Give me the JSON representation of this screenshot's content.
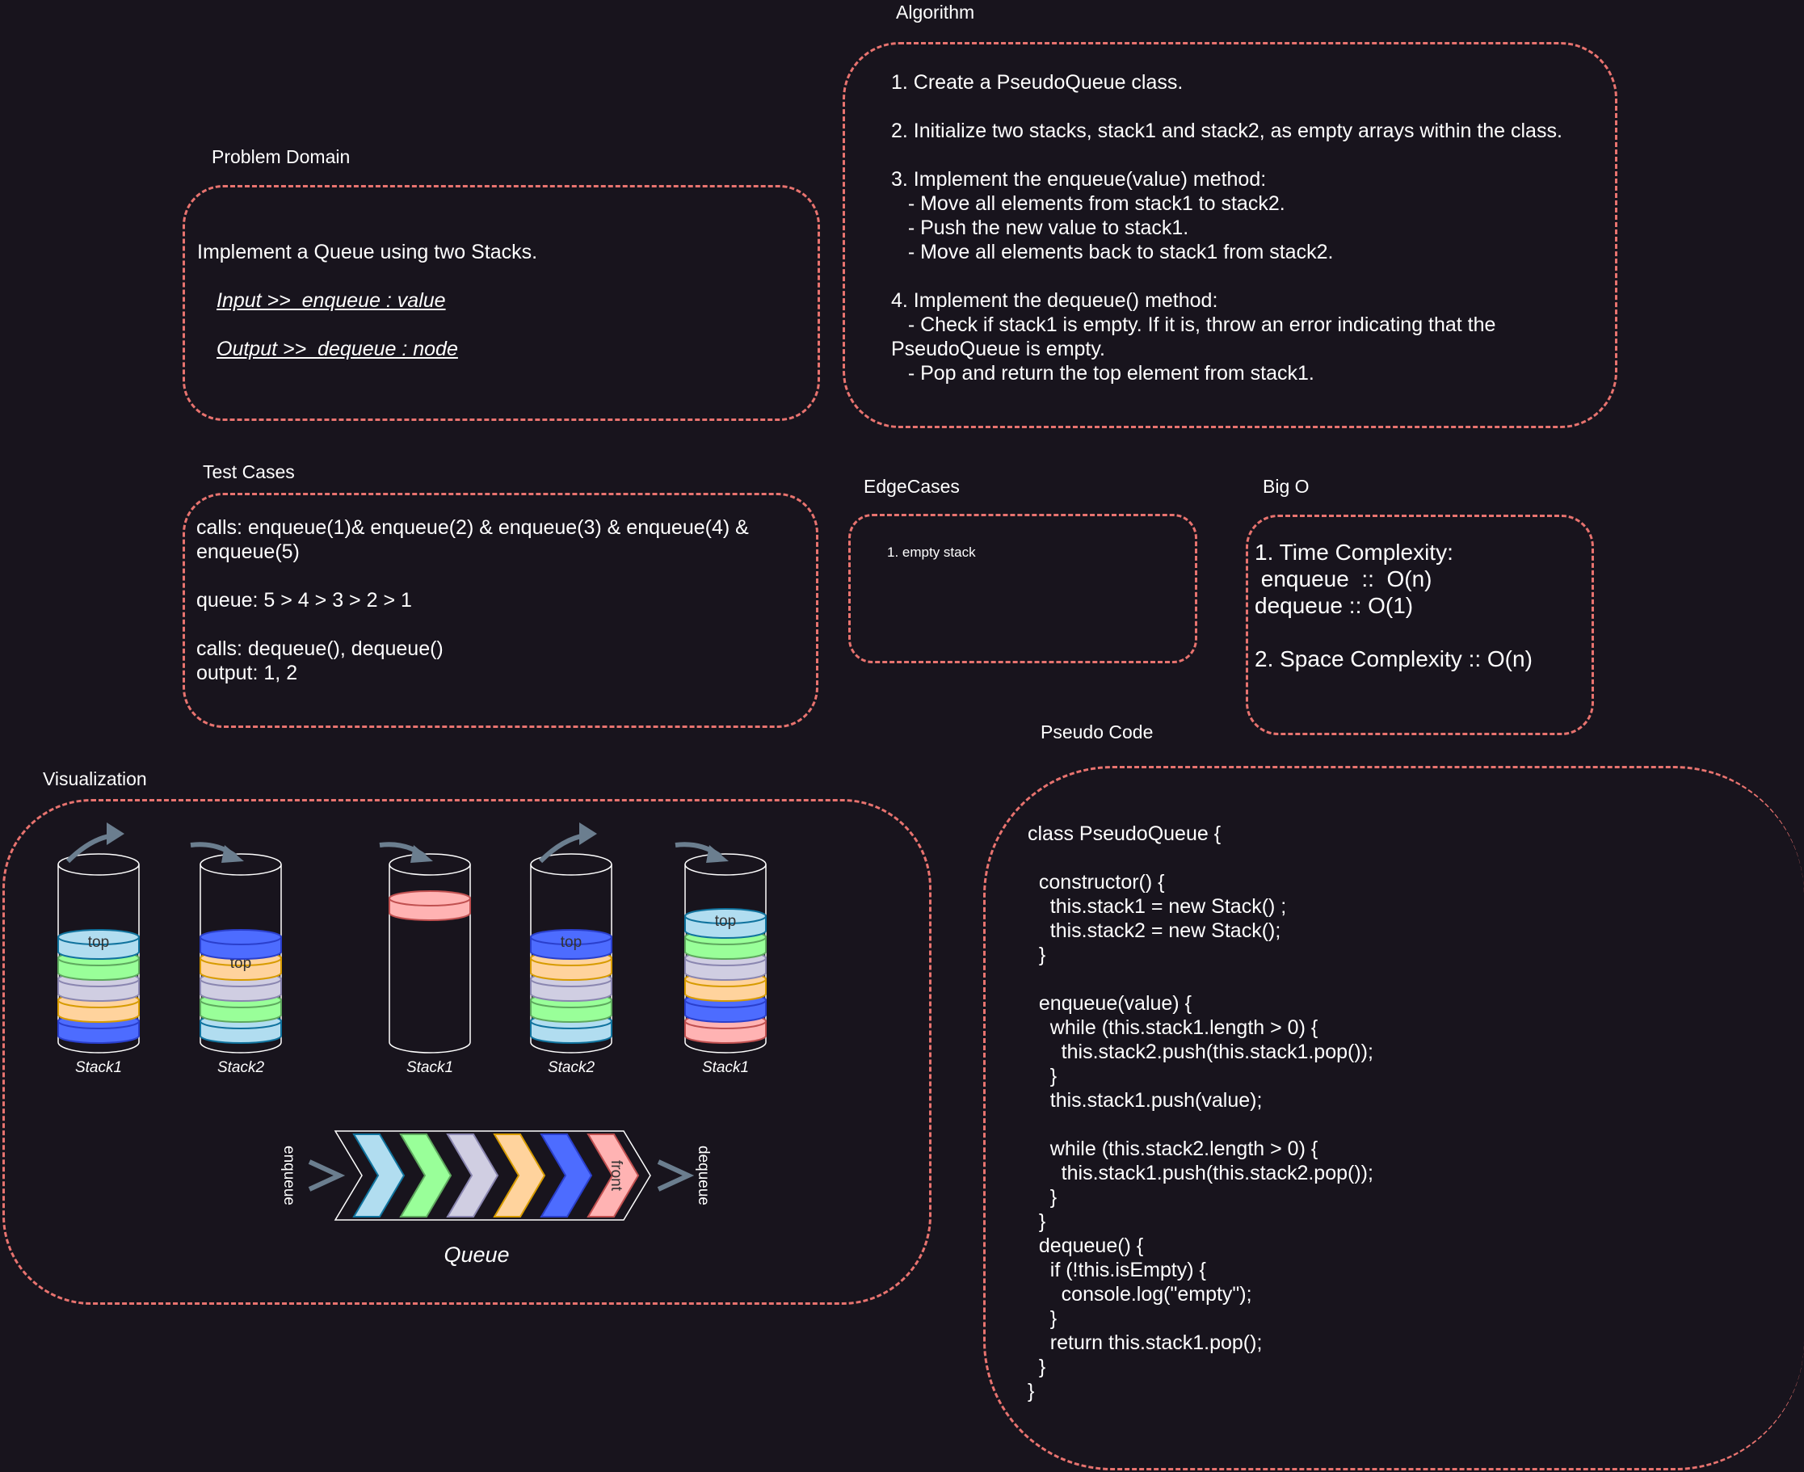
{
  "problem": {
    "title": "Problem Domain",
    "statement": "Implement a Queue using two Stacks.",
    "input": "Input >>  enqueue : value",
    "output": "Output >>  dequeue : node"
  },
  "algorithm": {
    "title": "Algorithm",
    "steps": [
      "1. Create a PseudoQueue class.",
      "",
      "2. Initialize two stacks, stack1 and stack2, as empty arrays within the class.",
      "",
      "3. Implement the enqueue(value) method:",
      "   - Move all elements from stack1 to stack2.",
      "   - Push the new value to stack1.",
      "   - Move all elements back to stack1 from stack2.",
      "",
      "4. Implement the dequeue() method:",
      "   - Check if stack1 is empty. If it is, throw an error indicating that the",
      "PseudoQueue is empty.",
      "   - Pop and return the top element from stack1."
    ]
  },
  "tests": {
    "title": "Test Cases",
    "lines": [
      "calls: enqueue(1)& enqueue(2) & enqueue(3) & enqueue(4) &",
      "enqueue(5)",
      "",
      "queue: 5 > 4 > 3 > 2 > 1",
      "",
      "calls: dequeue(), dequeue()",
      "output: 1, 2"
    ]
  },
  "edge": {
    "title": "EdgeCases",
    "item": "1. empty stack"
  },
  "bigo": {
    "title": "Big O",
    "lines": [
      "1. Time Complexity:",
      " enqueue  ::  O(n)",
      "dequeue :: O(1)",
      "",
      "2. Space Complexity :: O(n)"
    ]
  },
  "pseudo": {
    "title": "Pseudo Code",
    "lines": [
      "class PseudoQueue {",
      "",
      "  constructor() {",
      "    this.stack1 = new Stack() ;",
      "    this.stack2 = new Stack();",
      "  }",
      "",
      "  enqueue(value) {",
      "    while (this.stack1.length > 0) {",
      "      this.stack2.push(this.stack1.pop());",
      "    }",
      "    this.stack1.push(value);",
      "",
      "    while (this.stack2.length > 0) {",
      "      this.stack1.push(this.stack2.pop());",
      "    }",
      "  }",
      "  dequeue() {",
      "    if (!this.isEmpty) {",
      "      console.log(\"empty\");",
      "    }",
      "    return this.stack1.pop();",
      "  }",
      "}"
    ]
  },
  "viz": {
    "title": "Visualization",
    "colors": {
      "lightblue": "#b1ddf0",
      "green": "#99ff99",
      "lavender": "#d0cee2",
      "orange": "#ffd39d",
      "blue": "#4d6cff",
      "pink": "#ffb3b3",
      "arrow": "#6b7e8f",
      "stroke": "#ffffff"
    },
    "stacks": [
      {
        "label": "Stack1",
        "items": [
          "blue",
          "orange",
          "lavender",
          "green",
          "lightblue"
        ],
        "top_label": "top",
        "top_index": 4,
        "arrow": "out"
      },
      {
        "label": "Stack2",
        "items": [
          "lightblue",
          "green",
          "lavender",
          "orange",
          "blue"
        ],
        "top_label": "top",
        "top_index": 3,
        "arrow": "in"
      },
      {
        "label": "Stack1",
        "items": [
          "pink"
        ],
        "top_label": "",
        "top_index": -1,
        "arrow": "in"
      },
      {
        "label": "Stack2",
        "items": [
          "lightblue",
          "green",
          "lavender",
          "orange",
          "blue"
        ],
        "top_label": "top",
        "top_index": 4,
        "arrow": "out"
      },
      {
        "label": "Stack1",
        "items": [
          "pink",
          "blue",
          "orange",
          "lavender",
          "green",
          "lightblue"
        ],
        "top_label": "top",
        "top_index": 5,
        "arrow": "in"
      }
    ],
    "queue": {
      "label": "Queue",
      "items": [
        "lightblue",
        "green",
        "lavender",
        "orange",
        "blue",
        "pink"
      ],
      "front_label": "front",
      "enqueue_label": "enqueue",
      "dequeue_label": "dequeue"
    }
  }
}
